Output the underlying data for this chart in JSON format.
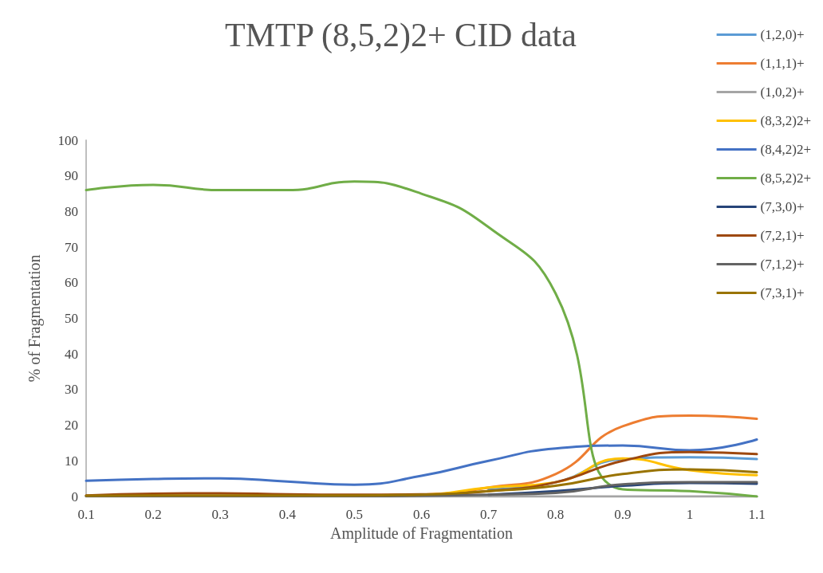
{
  "chart_data": {
    "type": "line",
    "title": "TMTP (8,5,2)2+ CID data",
    "xlabel": "Amplitude of Fragmentation",
    "ylabel": "% of Fragmentation",
    "categories": [
      "0.1",
      "0.2",
      "0.3",
      "0.4",
      "0.5",
      "0.6",
      "0.7",
      "0.8",
      "0.9",
      "1",
      "1.1"
    ],
    "ylim": [
      0,
      100
    ],
    "yticks": [
      0,
      10,
      20,
      30,
      40,
      50,
      60,
      70,
      80,
      90,
      100
    ],
    "grid": false,
    "legend": "right",
    "marker": "none",
    "line_style": "solid",
    "series": [
      {
        "name": "(1,2,0)+",
        "color": "#5b9bd5",
        "values": [
          null,
          null,
          null,
          null,
          null,
          null,
          2,
          4,
          10.5,
          11,
          10.5
        ]
      },
      {
        "name": "(1,1,1)+",
        "color": "#ed7d31",
        "values": [
          null,
          null,
          null,
          null,
          0.3,
          0.5,
          2.5,
          6.3,
          19.7,
          22.7,
          21.8
        ]
      },
      {
        "name": "(1,0,2)+",
        "color": "#a5a5a5",
        "values": [
          0,
          0,
          0,
          0,
          0,
          0,
          0,
          0,
          0,
          0,
          0
        ]
      },
      {
        "name": "(8,3,2)2+",
        "color": "#ffc000",
        "values": [
          null,
          null,
          null,
          null,
          0.3,
          0.5,
          2.5,
          4,
          10.7,
          7.4,
          6
        ]
      },
      {
        "name": "(8,4,2)2+",
        "color": "#4472c4",
        "values": [
          4.4,
          4.9,
          5.1,
          4.2,
          3.3,
          5.8,
          10,
          13.5,
          14.3,
          13,
          16
        ]
      },
      {
        "name": "(8,5,2)2+",
        "color": "#70ad47",
        "values": [
          86,
          87.5,
          86,
          86,
          88.4,
          85,
          75.6,
          57,
          2,
          1.5,
          0
        ]
      },
      {
        "name": "(7,3,0)+",
        "color": "#264478",
        "values": [
          null,
          null,
          null,
          null,
          null,
          null,
          0.5,
          1.5,
          3,
          3.8,
          3.6
        ]
      },
      {
        "name": "(7,2,1)+",
        "color": "#9e480e",
        "values": [
          0.3,
          0.8,
          0.9,
          0.6,
          0.5,
          0.6,
          1.5,
          4,
          10,
          12.5,
          11.9
        ]
      },
      {
        "name": "(7,1,2)+",
        "color": "#636363",
        "values": [
          0.1,
          0.1,
          0.1,
          0.1,
          0.1,
          0.2,
          0.5,
          1,
          3.4,
          4,
          4
        ]
      },
      {
        "name": "(7,3,1)+",
        "color": "#997300",
        "values": [
          0.2,
          0.3,
          0.3,
          0.3,
          0.3,
          0.5,
          1.5,
          3,
          6.3,
          7.6,
          6.8
        ]
      }
    ]
  }
}
